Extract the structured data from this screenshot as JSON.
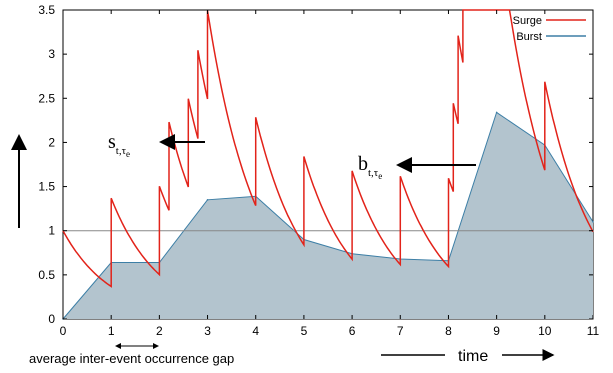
{
  "chart_data": {
    "type": "area",
    "xlim": [
      0,
      11
    ],
    "ylim": [
      0,
      3.5
    ],
    "x_ticks": [
      "0",
      "1",
      "2",
      "3",
      "4",
      "5",
      "6",
      "7",
      "8",
      "9",
      "10",
      "11"
    ],
    "y_ticks": [
      "0",
      "0.5",
      "1",
      "1.5",
      "2",
      "2.5",
      "3",
      "3.5"
    ],
    "reference_line": 1,
    "legend": {
      "position": "top-right",
      "items": [
        "Surge",
        "Burst"
      ]
    },
    "series": [
      {
        "name": "Surge",
        "kind": "line",
        "color": "#e2231a",
        "events": [
          0,
          1,
          2,
          2.2,
          2.6,
          2.8,
          3,
          4,
          5,
          6,
          7,
          8,
          8.1,
          8.2,
          8.3,
          8.4,
          8.5,
          8.6,
          8.8,
          10
        ],
        "decay": 0.5
      },
      {
        "name": "Burst",
        "kind": "area",
        "color": "#3d7fa6",
        "fill": "#b3c4ce",
        "x": [
          0,
          1,
          2,
          3,
          4,
          5,
          6,
          7,
          8,
          9,
          10,
          11
        ],
        "values": [
          0,
          0.64,
          0.64,
          1.35,
          1.39,
          0.9,
          0.74,
          0.68,
          0.66,
          2.34,
          1.97,
          1.1
        ]
      }
    ],
    "annotations": {
      "surge_label": "s",
      "surge_sub": "t,τ",
      "surge_subsub": "e",
      "burst_label": "b",
      "burst_sub": "t,τ",
      "burst_subsub": "e"
    },
    "bottom_note": "average inter-event occurrence gap",
    "time_label": "time"
  }
}
